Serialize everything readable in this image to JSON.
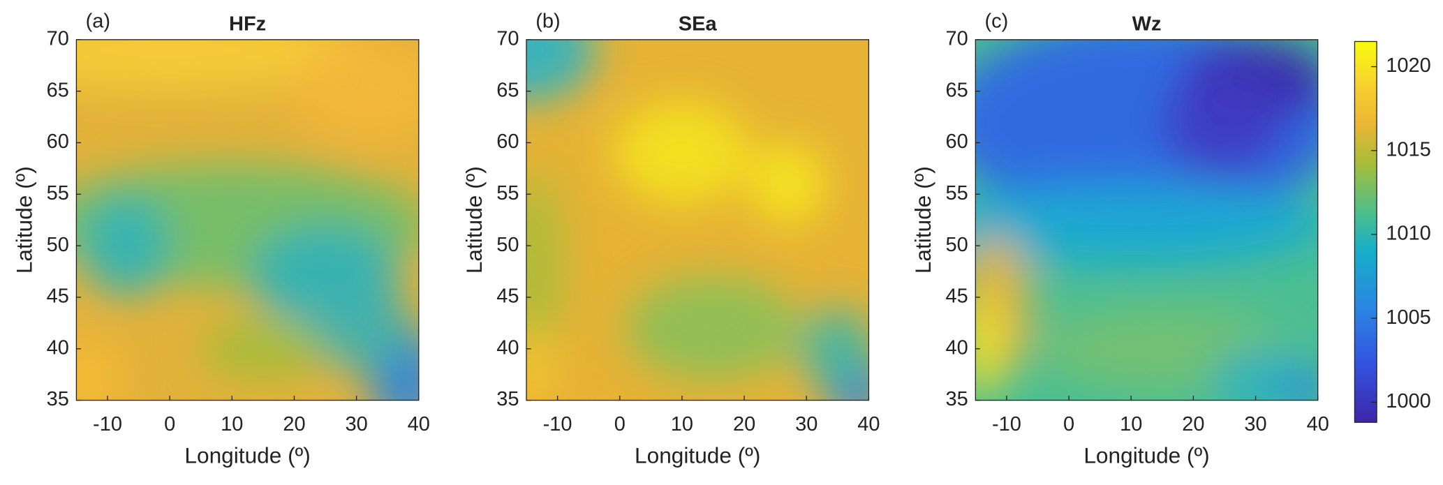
{
  "panels": [
    {
      "label": "(a)",
      "title": "HFz",
      "xlabel": "Longitude (º)",
      "ylabel": "Latitude (º)",
      "xlim": [
        -15,
        40
      ],
      "ylim": [
        35,
        70
      ],
      "xticks": [
        -10,
        0,
        10,
        20,
        30,
        40
      ],
      "yticks": [
        35,
        40,
        45,
        50,
        55,
        60,
        65,
        70
      ]
    },
    {
      "label": "(b)",
      "title": "SEa",
      "xlabel": "Longitude (º)",
      "ylabel": "Latitude (º)",
      "xlim": [
        -15,
        40
      ],
      "ylim": [
        35,
        70
      ],
      "xticks": [
        -10,
        0,
        10,
        20,
        30,
        40
      ],
      "yticks": [
        35,
        40,
        45,
        50,
        55,
        60,
        65,
        70
      ]
    },
    {
      "label": "(c)",
      "title": "Wz",
      "xlabel": "Longitude (º)",
      "ylabel": "Latitude (º)",
      "xlim": [
        -15,
        40
      ],
      "ylim": [
        35,
        70
      ],
      "xticks": [
        -10,
        0,
        10,
        20,
        30,
        40
      ],
      "yticks": [
        35,
        40,
        45,
        50,
        55,
        60,
        65,
        70
      ]
    }
  ],
  "colorbar": {
    "clim": [
      998.8,
      1021.5
    ],
    "ticks": [
      1000,
      1005,
      1010,
      1015,
      1020
    ]
  }
}
